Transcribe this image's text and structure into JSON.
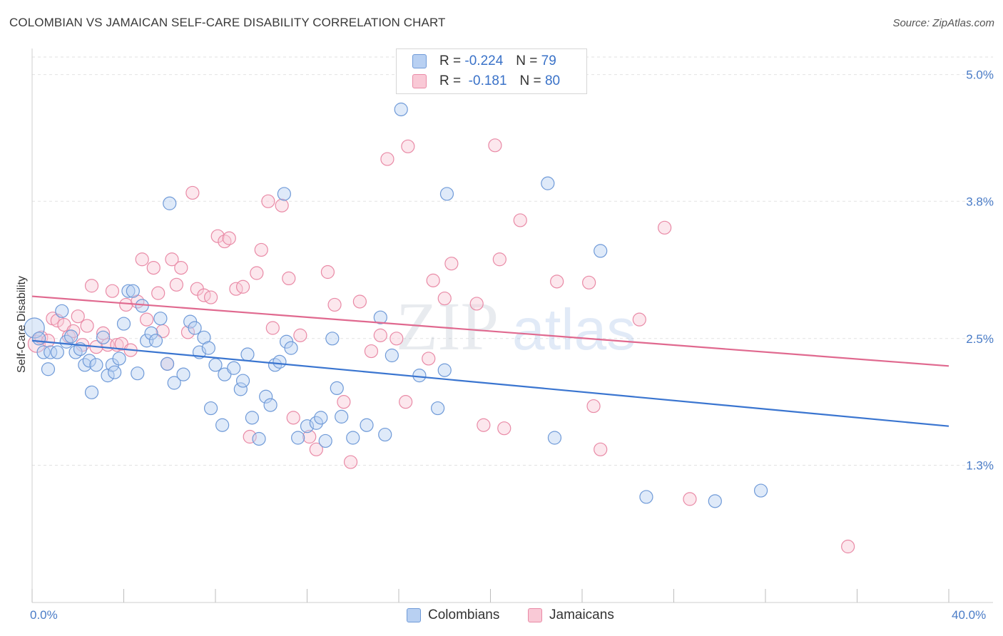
{
  "title": "COLOMBIAN VS JAMAICAN SELF-CARE DISABILITY CORRELATION CHART",
  "source": "Source: ZipAtlas.com",
  "watermark": {
    "part1": "ZIP",
    "part2": "atlas"
  },
  "legend": {
    "r_label": "R =",
    "n_label": "N =",
    "rows": [
      {
        "r": "-0.224",
        "n": "79",
        "fill": "#b8d0f2",
        "stroke": "#6f9ad8"
      },
      {
        "r": "-0.181",
        "n": "80",
        "fill": "#f9c9d6",
        "stroke": "#e98aa6"
      }
    ]
  },
  "bottom_legend": [
    "Colombians",
    "Jamaicans"
  ],
  "chart_data": {
    "type": "scatter",
    "ylabel": "Self-Care Disability",
    "xlim": [
      0,
      40
    ],
    "ylim": [
      0,
      5.2
    ],
    "x_tick_labels": [
      "0.0%",
      "40.0%"
    ],
    "y_ticks": [
      1.3,
      2.5,
      3.8,
      5.0
    ],
    "y_tick_labels": [
      "1.3%",
      "2.5%",
      "3.8%",
      "5.0%"
    ],
    "grid": "dashed-horizontal",
    "legend_placement": "top-center",
    "colors": {
      "Colombians": "#6f9ad8",
      "Jamaicans": "#e98aa6",
      "line_colombians": "#3a75d0",
      "line_jamaicans": "#e0698f"
    },
    "series": [
      {
        "name": "Colombians",
        "trend": {
          "x": [
            0,
            40
          ],
          "y": [
            2.48,
            1.67
          ]
        },
        "points": [
          [
            0.1,
            2.6
          ],
          [
            0.3,
            2.5
          ],
          [
            0.5,
            2.37
          ],
          [
            0.7,
            2.21
          ],
          [
            0.8,
            2.37
          ],
          [
            1.1,
            2.37
          ],
          [
            1.3,
            2.76
          ],
          [
            1.5,
            2.47
          ],
          [
            1.7,
            2.52
          ],
          [
            1.9,
            2.37
          ],
          [
            2.1,
            2.4
          ],
          [
            2.3,
            2.25
          ],
          [
            2.5,
            2.29
          ],
          [
            2.6,
            1.99
          ],
          [
            2.8,
            2.25
          ],
          [
            3.1,
            2.51
          ],
          [
            3.3,
            2.15
          ],
          [
            3.5,
            2.25
          ],
          [
            3.6,
            2.18
          ],
          [
            3.8,
            2.31
          ],
          [
            4.0,
            2.64
          ],
          [
            4.2,
            2.95
          ],
          [
            4.4,
            2.95
          ],
          [
            4.6,
            2.17
          ],
          [
            4.8,
            2.81
          ],
          [
            5.0,
            2.48
          ],
          [
            5.2,
            2.55
          ],
          [
            5.4,
            2.48
          ],
          [
            5.6,
            2.69
          ],
          [
            5.9,
            2.26
          ],
          [
            6.0,
            3.78
          ],
          [
            6.2,
            2.08
          ],
          [
            6.6,
            2.16
          ],
          [
            6.9,
            2.66
          ],
          [
            7.1,
            2.6
          ],
          [
            7.3,
            2.37
          ],
          [
            7.5,
            2.51
          ],
          [
            7.7,
            2.41
          ],
          [
            7.8,
            1.84
          ],
          [
            8.0,
            2.25
          ],
          [
            8.3,
            1.68
          ],
          [
            8.4,
            2.16
          ],
          [
            8.8,
            2.22
          ],
          [
            9.1,
            2.02
          ],
          [
            9.2,
            2.1
          ],
          [
            9.4,
            2.35
          ],
          [
            9.6,
            1.75
          ],
          [
            9.9,
            1.55
          ],
          [
            10.2,
            1.95
          ],
          [
            10.4,
            1.87
          ],
          [
            10.6,
            2.25
          ],
          [
            10.8,
            2.28
          ],
          [
            11.0,
            3.87
          ],
          [
            11.1,
            2.47
          ],
          [
            11.3,
            2.41
          ],
          [
            11.6,
            1.56
          ],
          [
            12.0,
            1.67
          ],
          [
            12.4,
            1.7
          ],
          [
            12.6,
            1.75
          ],
          [
            12.8,
            1.53
          ],
          [
            13.1,
            2.5
          ],
          [
            13.3,
            2.03
          ],
          [
            13.5,
            1.76
          ],
          [
            14.0,
            1.56
          ],
          [
            14.6,
            1.68
          ],
          [
            15.2,
            2.7
          ],
          [
            15.4,
            1.59
          ],
          [
            15.7,
            2.34
          ],
          [
            16.1,
            4.67
          ],
          [
            16.9,
            2.15
          ],
          [
            17.7,
            1.84
          ],
          [
            18.1,
            3.87
          ],
          [
            22.5,
            3.97
          ],
          [
            22.8,
            1.56
          ],
          [
            24.8,
            3.33
          ],
          [
            26.8,
            1.0
          ],
          [
            29.8,
            0.96
          ],
          [
            31.8,
            1.06
          ],
          [
            18.0,
            2.2
          ]
        ]
      },
      {
        "name": "Jamaicans",
        "trend": {
          "x": [
            0,
            40
          ],
          "y": [
            2.9,
            2.24
          ]
        },
        "points": [
          [
            0.2,
            2.45
          ],
          [
            0.4,
            2.51
          ],
          [
            0.7,
            2.48
          ],
          [
            0.9,
            2.69
          ],
          [
            1.1,
            2.67
          ],
          [
            1.4,
            2.63
          ],
          [
            1.6,
            2.52
          ],
          [
            1.8,
            2.57
          ],
          [
            2.0,
            2.71
          ],
          [
            2.2,
            2.44
          ],
          [
            2.4,
            2.62
          ],
          [
            2.6,
            3.0
          ],
          [
            2.8,
            2.42
          ],
          [
            3.1,
            2.55
          ],
          [
            3.3,
            2.44
          ],
          [
            3.5,
            2.95
          ],
          [
            3.7,
            2.44
          ],
          [
            3.9,
            2.45
          ],
          [
            4.1,
            2.82
          ],
          [
            4.3,
            2.39
          ],
          [
            4.6,
            2.85
          ],
          [
            4.8,
            3.25
          ],
          [
            5.0,
            2.68
          ],
          [
            5.3,
            3.17
          ],
          [
            5.5,
            2.93
          ],
          [
            5.7,
            2.57
          ],
          [
            5.9,
            2.26
          ],
          [
            6.1,
            3.25
          ],
          [
            6.3,
            3.01
          ],
          [
            6.5,
            3.17
          ],
          [
            6.8,
            2.56
          ],
          [
            7.0,
            3.88
          ],
          [
            7.2,
            2.97
          ],
          [
            7.5,
            2.91
          ],
          [
            7.8,
            2.89
          ],
          [
            8.1,
            3.47
          ],
          [
            8.4,
            3.42
          ],
          [
            8.6,
            3.45
          ],
          [
            8.9,
            2.97
          ],
          [
            9.2,
            2.99
          ],
          [
            9.5,
            1.57
          ],
          [
            9.8,
            3.12
          ],
          [
            10.0,
            3.34
          ],
          [
            10.3,
            3.8
          ],
          [
            10.5,
            2.6
          ],
          [
            10.9,
            3.76
          ],
          [
            11.2,
            3.07
          ],
          [
            11.4,
            1.75
          ],
          [
            11.7,
            2.53
          ],
          [
            12.1,
            1.57
          ],
          [
            12.4,
            1.45
          ],
          [
            12.9,
            3.13
          ],
          [
            13.2,
            2.82
          ],
          [
            13.6,
            1.9
          ],
          [
            13.9,
            1.33
          ],
          [
            14.3,
            2.85
          ],
          [
            14.8,
            2.38
          ],
          [
            15.2,
            2.53
          ],
          [
            15.5,
            4.2
          ],
          [
            15.9,
            2.5
          ],
          [
            16.4,
            4.32
          ],
          [
            17.3,
            2.31
          ],
          [
            17.5,
            3.05
          ],
          [
            18.0,
            2.88
          ],
          [
            18.3,
            3.21
          ],
          [
            19.4,
            2.83
          ],
          [
            19.7,
            1.68
          ],
          [
            20.2,
            4.33
          ],
          [
            20.4,
            3.25
          ],
          [
            20.6,
            1.65
          ],
          [
            21.3,
            3.62
          ],
          [
            22.9,
            3.04
          ],
          [
            24.3,
            3.03
          ],
          [
            24.5,
            1.86
          ],
          [
            24.8,
            1.45
          ],
          [
            26.5,
            2.68
          ],
          [
            27.6,
            3.55
          ],
          [
            28.7,
            0.98
          ],
          [
            35.6,
            0.53
          ],
          [
            16.3,
            1.9
          ]
        ]
      }
    ]
  }
}
